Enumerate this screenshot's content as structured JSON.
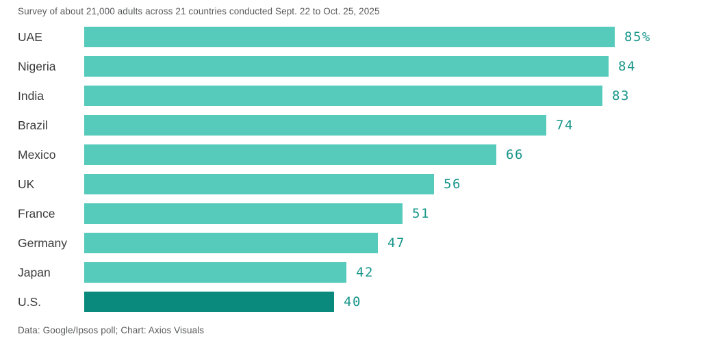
{
  "subtitle": "Survey of about 21,000 adults across 21 countries conducted Sept. 22 to Oct. 25, 2025",
  "footer": "Data: Google/Ipsos poll; Chart: Axios Visuals",
  "colors": {
    "bar": "#57cbbb",
    "bar_highlight": "#0a8a7c",
    "value_label": "#17958a",
    "category_label": "#3b3b3b",
    "caption_text": "#57585a"
  },
  "chart_data": {
    "type": "bar",
    "orientation": "horizontal",
    "categories": [
      "UAE",
      "Nigeria",
      "India",
      "Brazil",
      "Mexico",
      "UK",
      "France",
      "Germany",
      "Japan",
      "U.S."
    ],
    "values": [
      85,
      84,
      83,
      74,
      66,
      56,
      51,
      47,
      42,
      40
    ],
    "value_labels": [
      "85%",
      "84",
      "83",
      "74",
      "66",
      "56",
      "51",
      "47",
      "42",
      "40"
    ],
    "highlighted_category": "U.S.",
    "title": "",
    "xlabel": "",
    "ylabel": "",
    "xlim": [
      0,
      85
    ],
    "grid": false,
    "legend": false
  }
}
